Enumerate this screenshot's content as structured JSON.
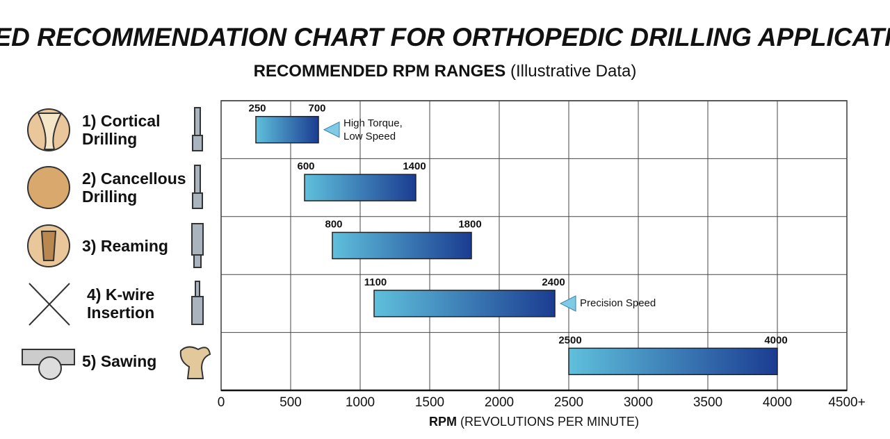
{
  "chart_data": {
    "type": "bar",
    "orientation": "horizontal",
    "title": "SPEED RECOMMENDATION CHART FOR ORTHOPEDIC DRILLING APPLICATIONS",
    "subtitle": "RECOMMENDED RPM RANGES",
    "subtitle_note": "(Illustrative Data)",
    "categories": [
      "1) Cortical\nDrilling",
      "2) Cancellous\nDrilling",
      "3) Reaming",
      "4) K-wire\nInsertion",
      "5) Sawing"
    ],
    "low": [
      250,
      600,
      800,
      1100,
      2500
    ],
    "high": [
      700,
      1400,
      1800,
      2400,
      4000
    ],
    "annotations": [
      "High Torque,\nLow Speed",
      null,
      null,
      "Precision Speed",
      null
    ],
    "color_start": "#5fc0dc",
    "color_end": "#1b3c91",
    "xlim": [
      0,
      4500
    ],
    "xticks": [
      0,
      500,
      1000,
      1500,
      2000,
      2500,
      3000,
      3500,
      4000,
      {
        "value": 4500,
        "label": "4500+"
      }
    ],
    "xlabel": "RPM",
    "xlabel_note": "(REVOLUTIONS PER MINUTE)",
    "grid": true
  }
}
